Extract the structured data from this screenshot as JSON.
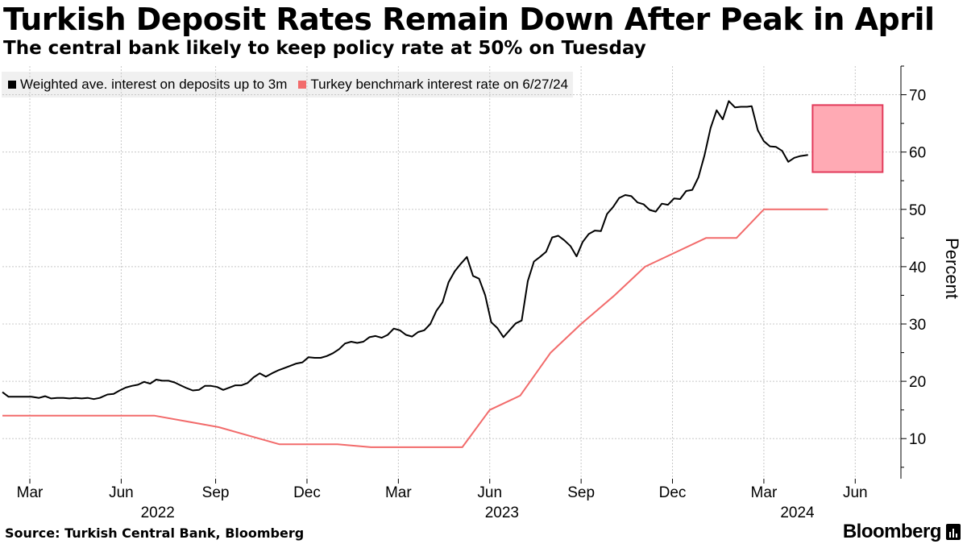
{
  "header": {
    "title": "Turkish Deposit Rates Remain Down After Peak in April",
    "subtitle": "The central bank likely to keep policy rate at 50% on Tuesday"
  },
  "footer": {
    "source": "Source: Turkish Central Bank, Bloomberg",
    "brand": "Bloomberg"
  },
  "colors": {
    "deposit": "#000000",
    "benchmark": "#f26b6b",
    "highlight_fill": "#ffaab4",
    "highlight_stroke": "#e23a5a",
    "grid": "#c8c8c8"
  },
  "chart_data": {
    "type": "line",
    "title": "Turkish Deposit Rates Remain Down After Peak in April",
    "ylabel": "Percent",
    "ylim": [
      3,
      75
    ],
    "yticks": [
      10,
      20,
      30,
      40,
      50,
      60,
      70
    ],
    "y_axis_side": "right",
    "x_unit": "months since Feb 1 2022",
    "xlim": [
      0,
      29.5
    ],
    "x_ticks": [
      {
        "label": "Mar",
        "x": 0.9
      },
      {
        "label": "Jun",
        "x": 3.9
      },
      {
        "label": "Sep",
        "x": 7
      },
      {
        "label": "Dec",
        "x": 10
      },
      {
        "label": "Mar",
        "x": 13
      },
      {
        "label": "Jun",
        "x": 16
      },
      {
        "label": "Sep",
        "x": 19
      },
      {
        "label": "Dec",
        "x": 22
      },
      {
        "label": "Mar",
        "x": 25
      },
      {
        "label": "Jun",
        "x": 28
      }
    ],
    "year_labels": [
      {
        "label": "2022",
        "x": 5.1
      },
      {
        "label": "2023",
        "x": 16.4
      },
      {
        "label": "2024",
        "x": 26.1
      }
    ],
    "legend_position": "top-left",
    "highlight": {
      "x": [
        26.6,
        28.9
      ],
      "y": [
        56.5,
        68.2
      ]
    },
    "series": [
      {
        "name": "Weighted ave. interest on deposits up to 3m",
        "color_key": "deposit",
        "points": [
          [
            0.0,
            18.1
          ],
          [
            0.2,
            17.3
          ],
          [
            0.45,
            17.3
          ],
          [
            0.7,
            17.3
          ],
          [
            0.95,
            17.3
          ],
          [
            1.2,
            17.1
          ],
          [
            1.4,
            17.4
          ],
          [
            1.6,
            17.0
          ],
          [
            1.8,
            17.1
          ],
          [
            2.0,
            17.1
          ],
          [
            2.2,
            17.0
          ],
          [
            2.4,
            17.1
          ],
          [
            2.6,
            17.0
          ],
          [
            2.8,
            17.1
          ],
          [
            3.0,
            16.9
          ],
          [
            3.2,
            17.1
          ],
          [
            3.45,
            17.7
          ],
          [
            3.65,
            17.8
          ],
          [
            3.85,
            18.4
          ],
          [
            4.05,
            18.9
          ],
          [
            4.25,
            19.2
          ],
          [
            4.45,
            19.4
          ],
          [
            4.65,
            19.9
          ],
          [
            4.85,
            19.6
          ],
          [
            5.05,
            20.3
          ],
          [
            5.25,
            20.1
          ],
          [
            5.45,
            20.1
          ],
          [
            5.65,
            19.8
          ],
          [
            5.85,
            19.3
          ],
          [
            6.05,
            18.8
          ],
          [
            6.25,
            18.4
          ],
          [
            6.45,
            18.5
          ],
          [
            6.65,
            19.2
          ],
          [
            6.85,
            19.2
          ],
          [
            7.05,
            19.0
          ],
          [
            7.25,
            18.5
          ],
          [
            7.45,
            18.9
          ],
          [
            7.65,
            19.3
          ],
          [
            7.85,
            19.3
          ],
          [
            8.05,
            19.7
          ],
          [
            8.25,
            20.7
          ],
          [
            8.45,
            21.4
          ],
          [
            8.65,
            20.8
          ],
          [
            8.85,
            21.4
          ],
          [
            9.05,
            21.9
          ],
          [
            9.25,
            22.3
          ],
          [
            9.45,
            22.7
          ],
          [
            9.65,
            23.1
          ],
          [
            9.85,
            23.3
          ],
          [
            10.05,
            24.2
          ],
          [
            10.25,
            24.1
          ],
          [
            10.45,
            24.1
          ],
          [
            10.65,
            24.4
          ],
          [
            10.85,
            24.9
          ],
          [
            11.05,
            25.6
          ],
          [
            11.25,
            26.6
          ],
          [
            11.45,
            26.9
          ],
          [
            11.65,
            26.7
          ],
          [
            11.85,
            26.9
          ],
          [
            12.05,
            27.7
          ],
          [
            12.25,
            27.9
          ],
          [
            12.45,
            27.6
          ],
          [
            12.65,
            28.1
          ],
          [
            12.85,
            29.2
          ],
          [
            13.05,
            28.9
          ],
          [
            13.25,
            28.1
          ],
          [
            13.45,
            27.8
          ],
          [
            13.65,
            28.6
          ],
          [
            13.85,
            28.9
          ],
          [
            14.05,
            30.0
          ],
          [
            14.25,
            32.3
          ],
          [
            14.45,
            33.8
          ],
          [
            14.65,
            37.3
          ],
          [
            14.85,
            39.2
          ],
          [
            15.05,
            40.5
          ],
          [
            15.25,
            41.7
          ],
          [
            15.45,
            38.4
          ],
          [
            15.65,
            37.9
          ],
          [
            15.85,
            35.0
          ],
          [
            16.05,
            30.3
          ],
          [
            16.25,
            29.3
          ],
          [
            16.45,
            27.7
          ],
          [
            16.65,
            28.9
          ],
          [
            16.85,
            30.1
          ],
          [
            17.05,
            30.6
          ],
          [
            17.25,
            37.5
          ],
          [
            17.45,
            40.9
          ],
          [
            17.65,
            41.7
          ],
          [
            17.85,
            42.6
          ],
          [
            18.05,
            45.1
          ],
          [
            18.25,
            45.4
          ],
          [
            18.45,
            44.6
          ],
          [
            18.65,
            43.6
          ],
          [
            18.85,
            41.8
          ],
          [
            19.05,
            44.3
          ],
          [
            19.25,
            45.7
          ],
          [
            19.45,
            46.3
          ],
          [
            19.65,
            46.2
          ],
          [
            19.85,
            49.2
          ],
          [
            20.05,
            50.4
          ],
          [
            20.25,
            52.0
          ],
          [
            20.45,
            52.5
          ],
          [
            20.65,
            52.3
          ],
          [
            20.85,
            51.2
          ],
          [
            21.05,
            50.9
          ],
          [
            21.25,
            49.9
          ],
          [
            21.45,
            49.6
          ],
          [
            21.65,
            51.0
          ],
          [
            21.85,
            50.8
          ],
          [
            22.05,
            51.9
          ],
          [
            22.25,
            51.8
          ],
          [
            22.45,
            53.2
          ],
          [
            22.65,
            53.4
          ],
          [
            22.85,
            55.6
          ],
          [
            23.05,
            59.4
          ],
          [
            23.25,
            64.2
          ],
          [
            23.45,
            67.3
          ],
          [
            23.65,
            65.7
          ],
          [
            23.85,
            68.9
          ],
          [
            24.05,
            67.8
          ],
          [
            24.25,
            67.9
          ],
          [
            24.45,
            67.9
          ],
          [
            24.6,
            68.0
          ],
          [
            24.8,
            63.8
          ],
          [
            25.0,
            61.9
          ],
          [
            25.2,
            61.0
          ],
          [
            25.4,
            60.9
          ],
          [
            25.6,
            60.2
          ],
          [
            25.8,
            58.3
          ],
          [
            26.0,
            59.0
          ],
          [
            26.2,
            59.3
          ],
          [
            26.45,
            59.5
          ]
        ]
      },
      {
        "name": "Turkey benchmark interest rate on 6/27/24",
        "color_key": "benchmark",
        "points": [
          [
            0.0,
            14.0
          ],
          [
            5.0,
            14.0
          ],
          [
            7.1,
            12.0
          ],
          [
            8.1,
            10.5
          ],
          [
            9.1,
            9.0
          ],
          [
            11.0,
            9.0
          ],
          [
            12.1,
            8.5
          ],
          [
            15.1,
            8.5
          ],
          [
            16.0,
            15.0
          ],
          [
            17.0,
            17.5
          ],
          [
            18.0,
            25.0
          ],
          [
            19.0,
            30.0
          ],
          [
            20.1,
            35.0
          ],
          [
            21.1,
            40.0
          ],
          [
            22.1,
            42.5
          ],
          [
            23.1,
            45.0
          ],
          [
            24.1,
            45.0
          ],
          [
            25.0,
            50.0
          ],
          [
            27.1,
            50.0
          ]
        ]
      }
    ]
  }
}
